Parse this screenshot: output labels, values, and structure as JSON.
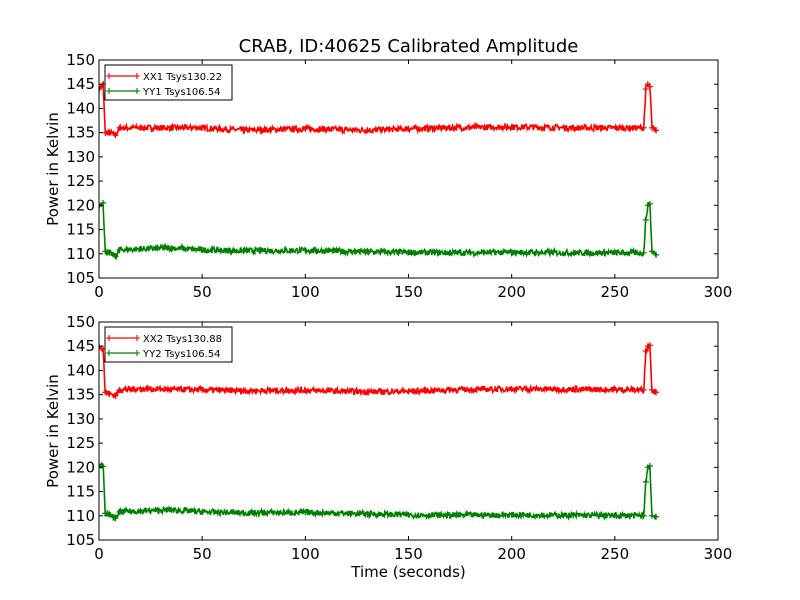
{
  "chart_data": [
    {
      "type": "line",
      "title": "CRAB, ID:40625 Calibrated Amplitude",
      "xlabel": "",
      "ylabel": "Power in Kelvin",
      "xlim": [
        0,
        300
      ],
      "ylim": [
        105,
        150
      ],
      "x_ticks": [
        0,
        50,
        100,
        150,
        200,
        250,
        300
      ],
      "y_ticks": [
        105,
        110,
        115,
        120,
        125,
        130,
        135,
        140,
        145,
        150
      ],
      "grid": false,
      "legend_position": "top-left",
      "series": [
        {
          "name": "XX1 Tsys130.22",
          "color": "#ff0000",
          "x": [
            0,
            2,
            3,
            5,
            8,
            10,
            20,
            35,
            50,
            70,
            100,
            130,
            150,
            170,
            200,
            230,
            264,
            265,
            266,
            267,
            268,
            270
          ],
          "y": [
            144,
            145,
            135,
            135,
            134.5,
            136,
            136,
            136,
            136,
            135.5,
            135.8,
            135.5,
            135.8,
            136,
            136.2,
            136,
            136,
            144,
            145,
            144.5,
            136,
            135.5
          ]
        },
        {
          "name": "YY1 Tsys106.54",
          "color": "#008000",
          "x": [
            0,
            2,
            3,
            5,
            8,
            10,
            20,
            35,
            50,
            70,
            100,
            130,
            150,
            170,
            200,
            230,
            264,
            265,
            266,
            267,
            268,
            270
          ],
          "y": [
            120,
            120.5,
            110.5,
            110.2,
            109.5,
            110.8,
            111,
            111.2,
            110.8,
            110.6,
            110.7,
            110.4,
            110.3,
            110.2,
            110.3,
            110.2,
            110.2,
            117,
            120,
            120.3,
            110.5,
            109.8
          ]
        }
      ]
    },
    {
      "type": "line",
      "title": "",
      "xlabel": "Time (seconds)",
      "ylabel": "Power in Kelvin",
      "xlim": [
        0,
        300
      ],
      "ylim": [
        105,
        150
      ],
      "x_ticks": [
        0,
        50,
        100,
        150,
        200,
        250,
        300
      ],
      "y_ticks": [
        105,
        110,
        115,
        120,
        125,
        130,
        135,
        140,
        145,
        150
      ],
      "grid": false,
      "legend_position": "top-left",
      "series": [
        {
          "name": "XX2 Tsys130.88",
          "color": "#ff0000",
          "x": [
            0,
            2,
            3,
            5,
            8,
            10,
            20,
            35,
            50,
            70,
            100,
            130,
            150,
            170,
            200,
            230,
            264,
            265,
            266,
            267,
            268,
            270
          ],
          "y": [
            145,
            144.5,
            135.5,
            135.2,
            134.8,
            136,
            136.2,
            136.1,
            136,
            135.8,
            135.9,
            135.6,
            135.7,
            136,
            136.2,
            136.1,
            136,
            144,
            145,
            145.2,
            136,
            135.5
          ]
        },
        {
          "name": "YY2 Tsys106.54",
          "color": "#008000",
          "x": [
            0,
            2,
            3,
            5,
            8,
            10,
            20,
            35,
            50,
            70,
            100,
            130,
            150,
            170,
            200,
            230,
            264,
            265,
            266,
            267,
            268,
            270
          ],
          "y": [
            120.5,
            120.2,
            110.5,
            110.2,
            109.5,
            110.8,
            111,
            111.2,
            110.8,
            110.6,
            110.7,
            110.4,
            110.2,
            110.1,
            110.2,
            110.1,
            110,
            117,
            120,
            120.3,
            110,
            109.8
          ]
        }
      ]
    }
  ]
}
